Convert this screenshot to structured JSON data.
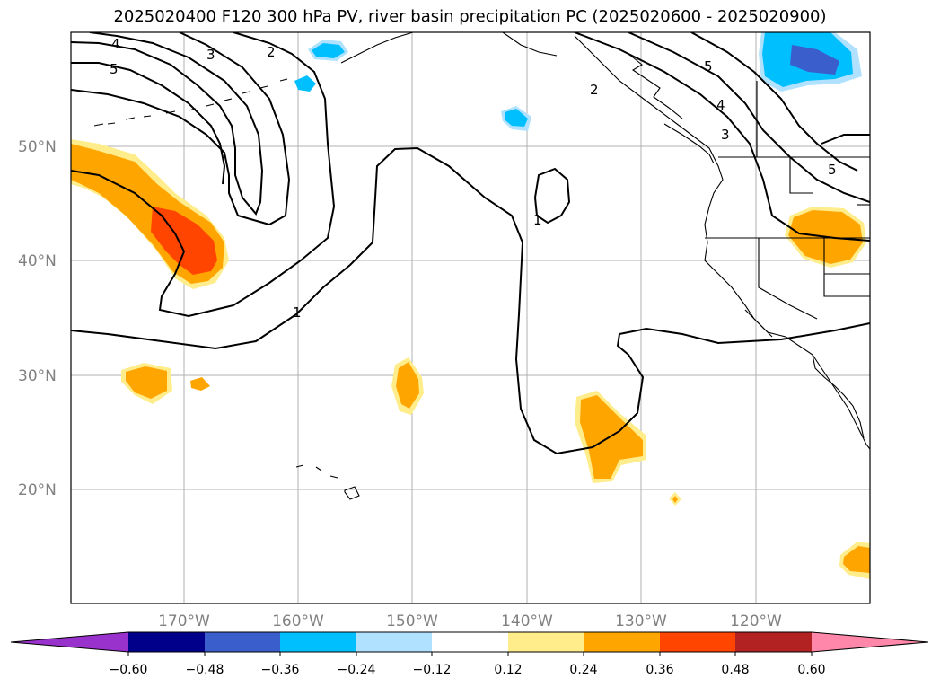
{
  "title": "2025020400 F120 300 hPa PV, river basin precipitation PC (2025020600 - 2025020900)",
  "map": {
    "lat_labels": [
      {
        "label": "50°N",
        "lat": 50
      },
      {
        "label": "40°N",
        "lat": 40
      },
      {
        "label": "30°N",
        "lat": 30
      },
      {
        "label": "20°N",
        "lat": 20
      }
    ],
    "lon_labels": [
      {
        "label": "170°W",
        "lon": -170
      },
      {
        "label": "160°W",
        "lon": -160
      },
      {
        "label": "150°W",
        "lon": -150
      },
      {
        "label": "140°W",
        "lon": -140
      },
      {
        "label": "130°W",
        "lon": -130
      },
      {
        "label": "120°W",
        "lon": -120
      }
    ],
    "pv_contour_labels": [
      "4",
      "5",
      "3",
      "2",
      "1",
      "1",
      "2",
      "5",
      "4",
      "3",
      "5"
    ],
    "colors": {
      "grid": "#b0b0b0",
      "coast": "#000000",
      "contour": "#000000"
    }
  },
  "colorbar": {
    "ticks": [
      "−0.60",
      "−0.48",
      "−0.36",
      "−0.24",
      "−0.12",
      "0.12",
      "0.24",
      "0.36",
      "0.48",
      "0.60"
    ],
    "colors": [
      "#9932cc",
      "#00008b",
      "#3a5fcd",
      "#00bfff",
      "#b0e2ff",
      "#ffffff",
      "#ffec8b",
      "#ffa500",
      "#ff4500",
      "#b22222",
      "#ff88aa"
    ]
  }
}
